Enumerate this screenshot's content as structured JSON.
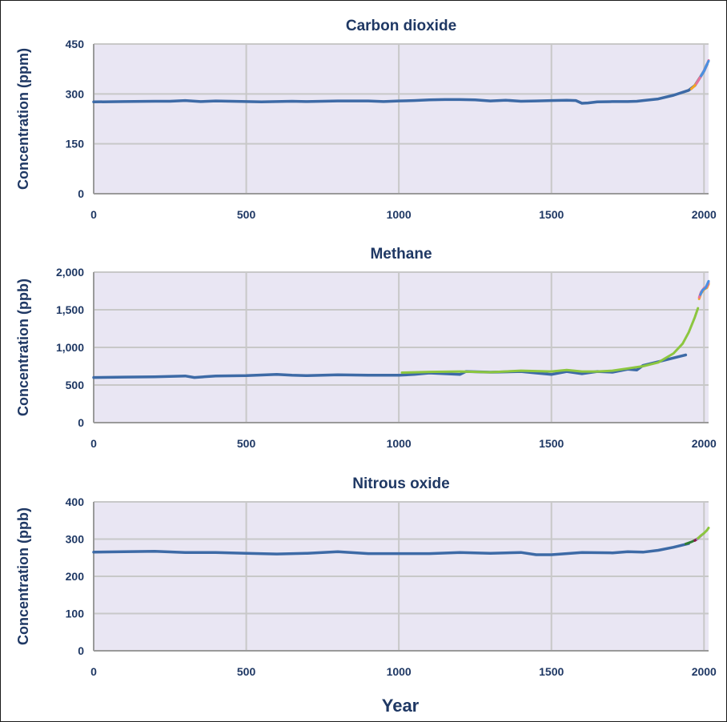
{
  "colors": {
    "plot_background": "#e9e6f3",
    "grid": "#c8c8c8",
    "axis": "#9a9a9a",
    "text": "#1f3864",
    "main_series": "#3d6aa6",
    "green": "#8cc63f",
    "orange": "#f5a623",
    "pink": "#e8739a",
    "purple": "#a070d0",
    "lightblue": "#4a90e2",
    "darkgreen": "#2e7d32",
    "maroon": "#8b1a4a"
  },
  "x_axis": {
    "label": "Year"
  },
  "chart_data": [
    {
      "type": "line",
      "title": "Carbon dioxide",
      "ylabel": "Concentration (ppm)",
      "xlim": [
        0,
        2015
      ],
      "ylim": [
        0,
        450
      ],
      "x_ticks": [
        0,
        500,
        1000,
        1500,
        2000
      ],
      "x_tick_labels": [
        "0",
        "500",
        "1000",
        "1500",
        "2000"
      ],
      "y_ticks": [
        0,
        150,
        300,
        450
      ],
      "y_tick_labels": [
        "0",
        "150",
        "300",
        "450"
      ],
      "series": [
        {
          "color": "#3d6aa6",
          "x": [
            0,
            100,
            200,
            250,
            300,
            350,
            400,
            450,
            500,
            550,
            600,
            650,
            700,
            750,
            800,
            850,
            900,
            950,
            1000,
            1050,
            1100,
            1150,
            1200,
            1250,
            1300,
            1350,
            1400,
            1450,
            1500,
            1550,
            1580,
            1600,
            1620,
            1650,
            1700,
            1750,
            1780,
            1800,
            1850,
            1900,
            1950,
            1970,
            1990,
            2000,
            2010
          ],
          "y": [
            276,
            277,
            278,
            278,
            280,
            277,
            279,
            278,
            277,
            276,
            277,
            278,
            277,
            278,
            279,
            279,
            279,
            277,
            279,
            280,
            282,
            283,
            283,
            282,
            279,
            281,
            278,
            279,
            280,
            281,
            280,
            272,
            273,
            276,
            277,
            277,
            278,
            280,
            285,
            296,
            311,
            325,
            354,
            369,
            389
          ]
        },
        {
          "color": "#f5a623",
          "x": [
            1958,
            1970,
            1980,
            1990,
            2000,
            2010,
            2015
          ],
          "y": [
            315,
            325,
            339,
            354,
            369,
            389,
            400
          ]
        },
        {
          "color": "#e8739a",
          "x": [
            1975,
            1985,
            1995,
            2005,
            2015
          ],
          "y": [
            331,
            346,
            361,
            379,
            401
          ]
        },
        {
          "color": "#4a90e2",
          "x": [
            1990,
            2000,
            2008,
            2015
          ],
          "y": [
            354,
            369,
            385,
            399
          ]
        }
      ]
    },
    {
      "type": "line",
      "title": "Methane",
      "ylabel": "Concentration (ppb)",
      "xlim": [
        0,
        2015
      ],
      "ylim": [
        0,
        2000
      ],
      "x_ticks": [
        0,
        500,
        1000,
        1500,
        2000
      ],
      "x_tick_labels": [
        "0",
        "500",
        "1000",
        "1500",
        "2000"
      ],
      "y_ticks": [
        0,
        500,
        1000,
        1500,
        2000
      ],
      "y_tick_labels": [
        "0",
        "500",
        "1,000",
        "1,500",
        "2,000"
      ],
      "series": [
        {
          "color": "#3d6aa6",
          "x": [
            0,
            100,
            200,
            300,
            330,
            400,
            500,
            600,
            650,
            700,
            800,
            900,
            1000,
            1050,
            1100,
            1200,
            1220,
            1300,
            1400,
            1450,
            1500,
            1550,
            1600,
            1650,
            1700,
            1750,
            1780,
            1800,
            1850,
            1900,
            1940
          ],
          "y": [
            600,
            605,
            610,
            620,
            600,
            620,
            625,
            640,
            630,
            625,
            635,
            630,
            630,
            640,
            660,
            640,
            680,
            670,
            680,
            660,
            640,
            680,
            650,
            680,
            670,
            710,
            700,
            760,
            810,
            860,
            900
          ]
        },
        {
          "color": "#8cc63f",
          "x": [
            1010,
            1100,
            1200,
            1300,
            1400,
            1500,
            1550,
            1600,
            1650,
            1700,
            1750,
            1800,
            1850,
            1900,
            1930,
            1950,
            1970,
            1980
          ],
          "y": [
            665,
            675,
            680,
            670,
            690,
            680,
            700,
            680,
            680,
            690,
            720,
            750,
            800,
            920,
            1050,
            1200,
            1400,
            1520
          ]
        },
        {
          "color": "#f5a623",
          "x": [
            1984,
            1990,
            2000,
            2010,
            2015
          ],
          "y": [
            1645,
            1715,
            1770,
            1795,
            1840
          ]
        },
        {
          "color": "#e8739a",
          "x": [
            1984,
            1990,
            2000,
            2010,
            2015
          ],
          "y": [
            1665,
            1735,
            1790,
            1810,
            1860
          ]
        },
        {
          "color": "#4a90e2",
          "x": [
            1988,
            1995,
            2005,
            2015
          ],
          "y": [
            1700,
            1760,
            1790,
            1880
          ]
        }
      ]
    },
    {
      "type": "line",
      "title": "Nitrous oxide",
      "ylabel": "Concentration (ppb)",
      "xlim": [
        0,
        2015
      ],
      "ylim": [
        0,
        400
      ],
      "x_ticks": [
        0,
        500,
        1000,
        1500,
        2000
      ],
      "x_tick_labels": [
        "0",
        "500",
        "1000",
        "1500",
        "2000"
      ],
      "y_ticks": [
        0,
        100,
        200,
        300,
        400
      ],
      "y_tick_labels": [
        "0",
        "100",
        "200",
        "300",
        "400"
      ],
      "series": [
        {
          "color": "#3d6aa6",
          "x": [
            0,
            100,
            200,
            300,
            400,
            500,
            600,
            700,
            800,
            900,
            1000,
            1100,
            1200,
            1300,
            1400,
            1450,
            1500,
            1600,
            1700,
            1750,
            1800,
            1850,
            1900,
            1950
          ],
          "y": [
            265,
            266,
            267,
            264,
            264,
            262,
            260,
            262,
            266,
            261,
            261,
            261,
            264,
            262,
            264,
            258,
            258,
            264,
            263,
            266,
            265,
            270,
            278,
            288
          ]
        },
        {
          "color": "#2e7d32",
          "x": [
            1940,
            1960,
            1975
          ],
          "y": [
            287,
            293,
            299
          ]
        },
        {
          "color": "#8b1a4a",
          "x": [
            1970,
            1980,
            1990
          ],
          "y": [
            296,
            302,
            309
          ]
        },
        {
          "color": "#a070d0",
          "x": [
            1978,
            1990,
            2000
          ],
          "y": [
            300,
            309,
            316
          ]
        },
        {
          "color": "#8cc63f",
          "x": [
            1980,
            1990,
            2000,
            2010,
            2015
          ],
          "y": [
            302,
            310,
            316,
            324,
            330
          ]
        }
      ]
    }
  ]
}
